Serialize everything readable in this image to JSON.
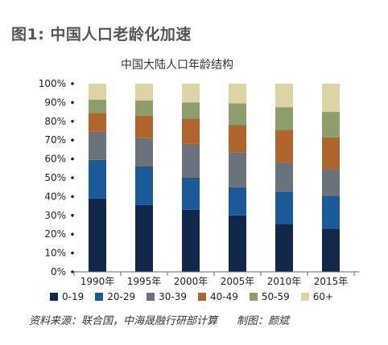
{
  "figure_title": "图1: 中国人口老龄化加速",
  "source": "资料来源：联合国，中海晟融行研部计算",
  "credit": "制图：颜斌",
  "colors": {
    "0-19": "#12284a",
    "20-29": "#1a5a99",
    "30-39": "#6a737c",
    "40-49": "#b0652f",
    "50-59": "#8e9d6c",
    "60+": "#dcd4a4"
  },
  "chart_data": {
    "type": "bar",
    "stacked": "percent",
    "title": "中国大陆人口年龄结构",
    "categories": [
      "1990年",
      "1995年",
      "2000年",
      "2005年",
      "2010年",
      "2015年"
    ],
    "ylim": [
      0,
      100
    ],
    "yticks": [
      "0%",
      "10%",
      "20%",
      "30%",
      "40%",
      "50%",
      "60%",
      "70%",
      "80%",
      "90%",
      "100%"
    ],
    "legend_position": "bottom",
    "series": [
      {
        "name": "0-19",
        "values": [
          39,
          35.5,
          33,
          30,
          25.5,
          23
        ]
      },
      {
        "name": "20-29",
        "values": [
          20.5,
          20.5,
          17,
          15,
          17,
          17.5
        ]
      },
      {
        "name": "30-39",
        "values": [
          15,
          15,
          18,
          18.5,
          16,
          14
        ]
      },
      {
        "name": "40-49",
        "values": [
          10,
          12,
          13.5,
          14.5,
          17,
          17
        ]
      },
      {
        "name": "50-59",
        "values": [
          7,
          8,
          8.5,
          11.5,
          12,
          13.5
        ]
      },
      {
        "name": "60+",
        "values": [
          8.5,
          9,
          10,
          10.5,
          12.5,
          15
        ]
      }
    ]
  }
}
